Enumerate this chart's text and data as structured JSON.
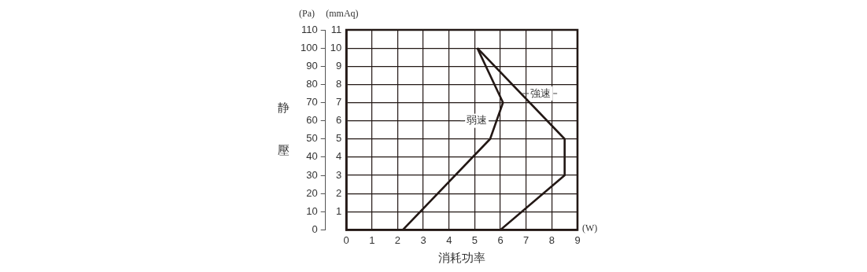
{
  "chart_data": {
    "type": "line",
    "xlabel": "消耗功率",
    "ylabel": "静壓",
    "y2label": "(mmAq)",
    "annotations": [
      "(Pa)",
      "(W)"
    ],
    "xlim": [
      0,
      9
    ],
    "xticks": [
      0,
      1,
      2,
      3,
      4,
      5,
      6,
      7,
      8,
      9
    ],
    "ylim": [
      0,
      110
    ],
    "yticks": [
      0,
      10,
      20,
      30,
      40,
      50,
      60,
      70,
      80,
      90,
      100,
      110
    ],
    "y2lim": [
      0,
      11
    ],
    "y2ticks": [
      1,
      2,
      3,
      4,
      5,
      6,
      7,
      8,
      9,
      10,
      11
    ],
    "grid": true,
    "legend": false,
    "series": [
      {
        "name": "弱速",
        "color": "#231815",
        "x": [
          2.2,
          5.6,
          6.1,
          5.1
        ],
        "values": [
          0,
          50,
          70,
          100
        ]
      },
      {
        "name": "強速",
        "color": "#231815",
        "x": [
          6,
          8.5,
          8.5,
          5.1
        ],
        "values": [
          0,
          30,
          50,
          100
        ]
      }
    ]
  }
}
